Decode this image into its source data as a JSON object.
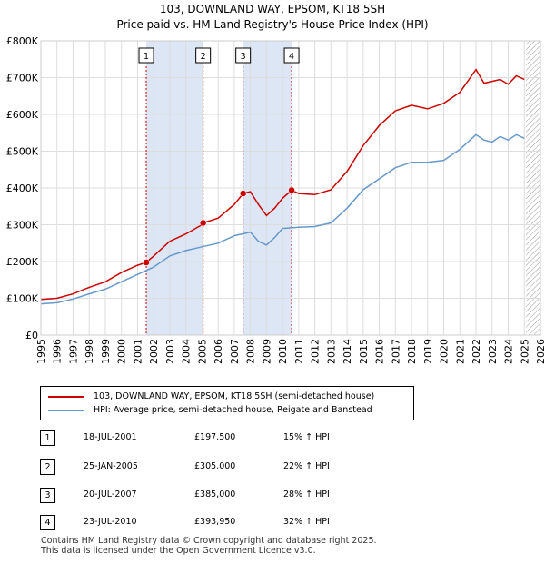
{
  "title_line1": "103, DOWNLAND WAY, EPSOM, KT18 5SH",
  "title_line2": "Price paid vs. HM Land Registry's House Price Index (HPI)",
  "colors": {
    "property": "#cc0000",
    "hpi": "#6699cc",
    "shade": "#dde6f5",
    "grid": "#dddddd"
  },
  "legend": [
    {
      "label": "103, DOWNLAND WAY, EPSOM, KT18 5SH (semi-detached house)",
      "color": "#cc0000"
    },
    {
      "label": "HPI: Average price, semi-detached house, Reigate and Banstead",
      "color": "#6699cc"
    }
  ],
  "transactions": [
    {
      "num": "1",
      "date": "18-JUL-2001",
      "price": "£197,500",
      "hpi": "15% ↑ HPI"
    },
    {
      "num": "2",
      "date": "25-JAN-2005",
      "price": "£305,000",
      "hpi": "22% ↑ HPI"
    },
    {
      "num": "3",
      "date": "20-JUL-2007",
      "price": "£385,000",
      "hpi": "28% ↑ HPI"
    },
    {
      "num": "4",
      "date": "23-JUL-2010",
      "price": "£393,950",
      "hpi": "32% ↑ HPI"
    }
  ],
  "footer_line1": "Contains HM Land Registry data © Crown copyright and database right 2025.",
  "footer_line2": "This data is licensed under the Open Government Licence v3.0.",
  "chart_data": {
    "type": "line",
    "title": "103, DOWNLAND WAY, EPSOM, KT18 5SH",
    "subtitle": "Price paid vs. HM Land Registry's House Price Index (HPI)",
    "xlim": [
      1995,
      2026
    ],
    "ylim": [
      0,
      800000
    ],
    "x_ticks": [
      "1995",
      "1996",
      "1997",
      "1998",
      "1999",
      "2000",
      "2001",
      "2002",
      "2003",
      "2004",
      "2005",
      "2006",
      "2007",
      "2008",
      "2009",
      "2010",
      "2011",
      "2012",
      "2013",
      "2014",
      "2015",
      "2016",
      "2017",
      "2018",
      "2019",
      "2020",
      "2021",
      "2022",
      "2023",
      "2024",
      "2025",
      "2026"
    ],
    "y_ticks": [
      {
        "value": 0,
        "label": "£0"
      },
      {
        "value": 100000,
        "label": "£100K"
      },
      {
        "value": 200000,
        "label": "£200K"
      },
      {
        "value": 300000,
        "label": "£300K"
      },
      {
        "value": 400000,
        "label": "£400K"
      },
      {
        "value": 500000,
        "label": "£500K"
      },
      {
        "value": 600000,
        "label": "£600K"
      },
      {
        "value": 700000,
        "label": "£700K"
      },
      {
        "value": 800000,
        "label": "£800K"
      }
    ],
    "grid": true,
    "shaded_ranges": [
      [
        2001.54,
        2005.07
      ],
      [
        2007.55,
        2010.56
      ]
    ],
    "hatched_from": 2025.1,
    "sales": [
      {
        "label": "1",
        "x": 2001.54,
        "y": 197500
      },
      {
        "label": "2",
        "x": 2005.07,
        "y": 305000
      },
      {
        "label": "3",
        "x": 2007.55,
        "y": 385000
      },
      {
        "label": "4",
        "x": 2010.56,
        "y": 393950
      }
    ],
    "series": [
      {
        "name": "103, DOWNLAND WAY, EPSOM, KT18 5SH (semi-detached house)",
        "color": "#cc0000",
        "x": [
          1995,
          1996,
          1997,
          1998,
          1999,
          2000,
          2001,
          2001.54,
          2002,
          2003,
          2004,
          2005,
          2005.07,
          2006,
          2007,
          2007.55,
          2008,
          2008.5,
          2009,
          2009.5,
          2010,
          2010.56,
          2011,
          2012,
          2013,
          2014,
          2015,
          2016,
          2017,
          2018,
          2019,
          2020,
          2021,
          2022,
          2022.5,
          2023,
          2023.5,
          2024,
          2024.5,
          2025
        ],
        "y": [
          97000,
          100000,
          112000,
          130000,
          145000,
          170000,
          190000,
          197500,
          215000,
          255000,
          275000,
          300000,
          305000,
          318000,
          355000,
          385000,
          390000,
          355000,
          325000,
          345000,
          372000,
          393950,
          385000,
          382000,
          395000,
          445000,
          515000,
          570000,
          610000,
          625000,
          615000,
          630000,
          660000,
          722000,
          685000,
          690000,
          695000,
          682000,
          705000,
          695000
        ]
      },
      {
        "name": "HPI: Average price, semi-detached house, Reigate and Banstead",
        "color": "#6699cc",
        "x": [
          1995,
          1996,
          1997,
          1998,
          1999,
          2000,
          2001,
          2002,
          2003,
          2004,
          2005,
          2006,
          2007,
          2008,
          2008.5,
          2009,
          2009.5,
          2010,
          2011,
          2012,
          2013,
          2014,
          2015,
          2016,
          2017,
          2018,
          2019,
          2020,
          2021,
          2022,
          2022.5,
          2023,
          2023.5,
          2024,
          2024.5,
          2025
        ],
        "y": [
          85000,
          88000,
          98000,
          112000,
          125000,
          145000,
          165000,
          185000,
          215000,
          230000,
          240000,
          250000,
          270000,
          280000,
          255000,
          245000,
          265000,
          290000,
          293000,
          295000,
          305000,
          345000,
          395000,
          425000,
          455000,
          470000,
          470000,
          475000,
          505000,
          545000,
          530000,
          525000,
          540000,
          530000,
          545000,
          535000
        ]
      }
    ]
  }
}
